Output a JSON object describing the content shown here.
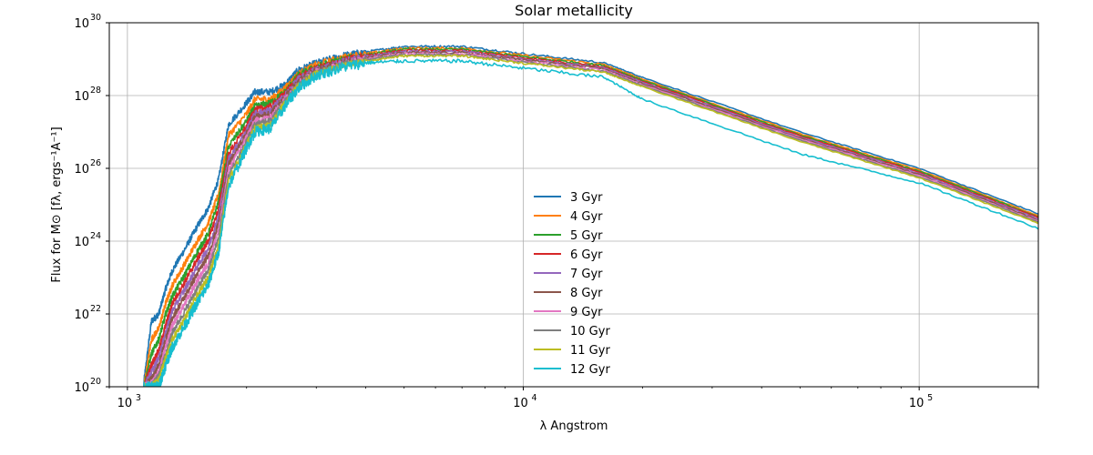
{
  "chart_data": {
    "type": "line",
    "title": "Solar metallicity",
    "xlabel": "λ Angstrom",
    "ylabel": "Flux for M⊙ [fλ, ergs⁻¹A⁻¹]",
    "x_scale": "log",
    "y_scale": "log",
    "xlim": [
      900,
      200000
    ],
    "ylim": [
      1e+20,
      1e+30
    ],
    "x_ticks": [
      {
        "value": 1000,
        "base": "10",
        "exp": "3"
      },
      {
        "value": 10000,
        "base": "10",
        "exp": "4"
      },
      {
        "value": 100000,
        "base": "10",
        "exp": "5"
      }
    ],
    "y_ticks": [
      {
        "value": 1e+20,
        "base": "10",
        "exp": "20"
      },
      {
        "value": 1e+22,
        "base": "10",
        "exp": "22"
      },
      {
        "value": 1e+24,
        "base": "10",
        "exp": "24"
      },
      {
        "value": 1e+26,
        "base": "10",
        "exp": "26"
      },
      {
        "value": 1e+28,
        "base": "10",
        "exp": "28"
      },
      {
        "value": 1e+30,
        "base": "10",
        "exp": "30"
      }
    ],
    "grid": true,
    "legend_position": "center-bottom",
    "x": [
      1100,
      1150,
      1200,
      1250,
      1300,
      1400,
      1500,
      1600,
      1700,
      1800,
      2000,
      2100,
      2300,
      2500,
      2700,
      3000,
      3500,
      4000,
      5000,
      7000,
      10000,
      16000,
      20000,
      50000,
      100000,
      200000
    ],
    "series": [
      {
        "name": "3 Gyr",
        "color": "#1f77b4",
        "log_flux": [
          20.1,
          21.8,
          22.0,
          22.7,
          23.2,
          23.8,
          24.4,
          24.9,
          25.7,
          27.2,
          27.8,
          28.1,
          28.1,
          28.3,
          28.7,
          28.9,
          29.1,
          29.2,
          29.35,
          29.35,
          29.15,
          28.9,
          28.5,
          27.0,
          26.0,
          24.75
        ]
      },
      {
        "name": "4 Gyr",
        "color": "#ff7f0e",
        "log_flux": [
          20.0,
          21.3,
          21.6,
          22.3,
          22.8,
          23.4,
          24.0,
          24.5,
          25.3,
          26.9,
          27.5,
          27.9,
          27.9,
          28.2,
          28.6,
          28.85,
          29.05,
          29.15,
          29.3,
          29.3,
          29.1,
          28.85,
          28.45,
          26.95,
          25.95,
          24.7
        ]
      },
      {
        "name": "5 Gyr",
        "color": "#2ca02c",
        "log_flux": [
          20.0,
          20.9,
          21.3,
          22.0,
          22.5,
          23.1,
          23.7,
          24.2,
          25.1,
          26.6,
          27.3,
          27.7,
          27.8,
          28.1,
          28.55,
          28.8,
          29.0,
          29.12,
          29.27,
          29.27,
          29.07,
          28.82,
          28.42,
          26.92,
          25.92,
          24.67
        ]
      },
      {
        "name": "6 Gyr",
        "color": "#d62728",
        "log_flux": [
          20.0,
          20.6,
          21.0,
          21.7,
          22.3,
          22.9,
          23.5,
          24.0,
          24.9,
          26.4,
          27.15,
          27.6,
          27.7,
          28.05,
          28.5,
          28.75,
          28.97,
          29.1,
          29.24,
          29.24,
          29.04,
          28.79,
          28.39,
          26.89,
          25.89,
          24.64
        ]
      },
      {
        "name": "7 Gyr",
        "color": "#9467bd",
        "log_flux": [
          20.0,
          20.4,
          20.8,
          21.5,
          22.1,
          22.7,
          23.3,
          23.8,
          24.7,
          26.25,
          27.05,
          27.5,
          27.6,
          28.0,
          28.45,
          28.72,
          28.94,
          29.07,
          29.21,
          29.21,
          29.01,
          28.76,
          28.36,
          26.86,
          25.86,
          24.61
        ]
      },
      {
        "name": "8 Gyr",
        "color": "#8c564b",
        "log_flux": [
          20.0,
          20.2,
          20.6,
          21.3,
          21.9,
          22.5,
          23.1,
          23.6,
          24.5,
          26.1,
          26.95,
          27.4,
          27.5,
          27.95,
          28.4,
          28.69,
          28.91,
          29.04,
          29.18,
          29.18,
          28.98,
          28.73,
          28.33,
          26.83,
          25.83,
          24.58
        ]
      },
      {
        "name": "9 Gyr",
        "color": "#e377c2",
        "log_flux": [
          20.0,
          20.1,
          20.4,
          21.1,
          21.7,
          22.3,
          22.9,
          23.4,
          24.3,
          25.95,
          26.85,
          27.3,
          27.4,
          27.9,
          28.35,
          28.66,
          28.88,
          29.01,
          29.15,
          29.15,
          28.95,
          28.7,
          28.3,
          26.8,
          25.8,
          24.55
        ]
      },
      {
        "name": "10 Gyr",
        "color": "#7f7f7f",
        "log_flux": [
          20.0,
          20.0,
          20.3,
          20.9,
          21.5,
          22.1,
          22.7,
          23.2,
          24.1,
          25.8,
          26.75,
          27.2,
          27.3,
          27.85,
          28.3,
          28.63,
          28.85,
          28.98,
          29.12,
          29.12,
          28.92,
          28.67,
          28.27,
          26.77,
          25.77,
          24.52
        ]
      },
      {
        "name": "11 Gyr",
        "color": "#bcbd22",
        "log_flux": [
          20.0,
          20.0,
          20.2,
          20.8,
          21.3,
          21.9,
          22.5,
          23.0,
          23.9,
          25.65,
          26.65,
          27.1,
          27.2,
          27.8,
          28.25,
          28.6,
          28.82,
          28.95,
          29.09,
          29.09,
          28.89,
          28.64,
          28.24,
          26.74,
          25.74,
          24.49
        ]
      },
      {
        "name": "12 Gyr",
        "color": "#17becf",
        "log_flux": [
          20.0,
          20.0,
          20.0,
          20.6,
          21.1,
          21.7,
          22.3,
          22.8,
          23.7,
          25.5,
          26.55,
          27.0,
          27.1,
          27.7,
          28.2,
          28.55,
          28.78,
          28.9,
          28.95,
          28.95,
          28.75,
          28.5,
          27.9,
          26.4,
          25.6,
          24.35
        ]
      }
    ]
  }
}
